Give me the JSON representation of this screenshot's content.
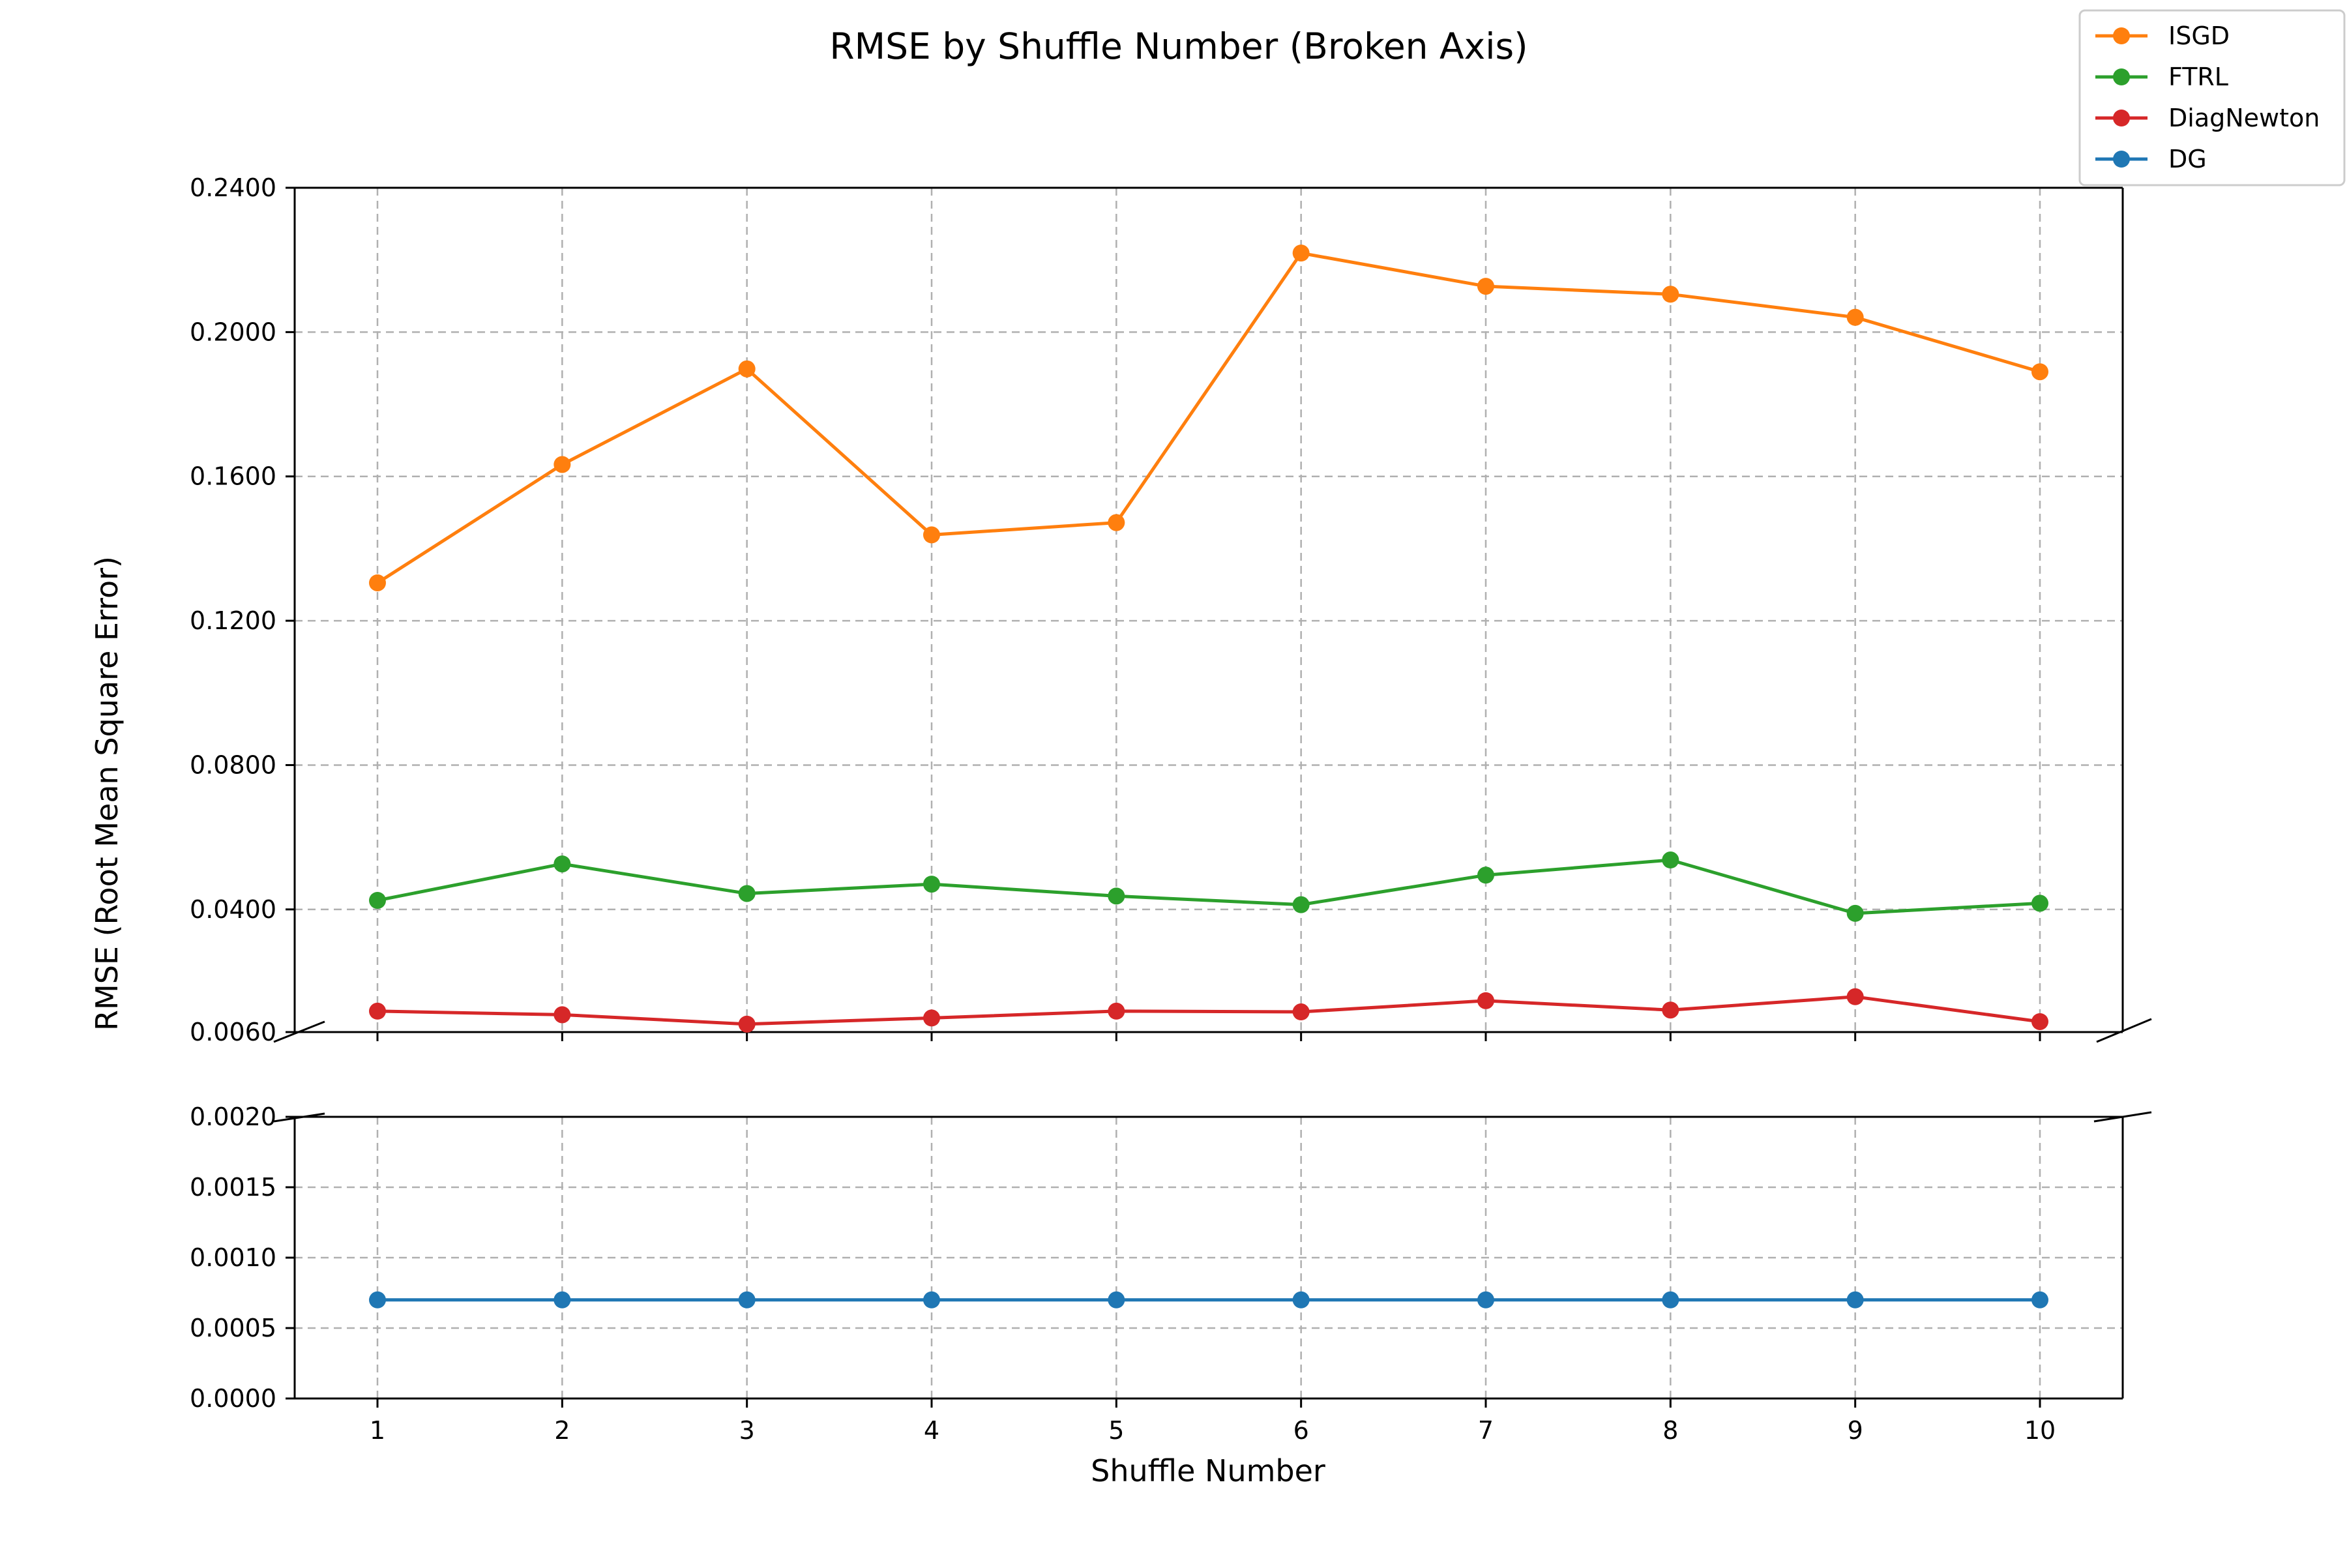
{
  "chart_data": {
    "type": "line",
    "title": "RMSE by Shuffle Number (Broken Axis)",
    "xlabel": "Shuffle Number",
    "ylabel": "RMSE (Root Mean Square Error)",
    "x": [
      1,
      2,
      3,
      4,
      5,
      6,
      7,
      8,
      9,
      10
    ],
    "x_tick_labels": [
      "1",
      "2",
      "3",
      "4",
      "5",
      "6",
      "7",
      "8",
      "9",
      "10"
    ],
    "broken_axis": true,
    "grid": true,
    "legend_position": "top-right",
    "upper_panel": {
      "ylim": [
        0.006,
        0.24
      ],
      "y_ticks": [
        0.006,
        0.04,
        0.08,
        0.12,
        0.16,
        0.2,
        0.24
      ],
      "y_tick_labels": [
        "0.0060",
        "0.0400",
        "0.0800",
        "0.1200",
        "0.1600",
        "0.2000",
        "0.2400"
      ]
    },
    "lower_panel": {
      "ylim": [
        0,
        0.002
      ],
      "y_ticks": [
        0,
        0.0005,
        0.001,
        0.0015,
        0.002
      ],
      "y_tick_labels": [
        "0.0000",
        "0.0005",
        "0.0010",
        "0.0015",
        "0.0020"
      ]
    },
    "series": [
      {
        "name": "ISGD",
        "color": "#ff7f0e",
        "panel": "upper",
        "values": [
          0.1305,
          0.1633,
          0.1898,
          0.1438,
          0.1472,
          0.2219,
          0.2127,
          0.2105,
          0.2041,
          0.189
        ]
      },
      {
        "name": "FTRL",
        "color": "#2ca02c",
        "panel": "upper",
        "values": [
          0.0425,
          0.0526,
          0.0444,
          0.047,
          0.0437,
          0.0413,
          0.0495,
          0.0537,
          0.0389,
          0.0417
        ]
      },
      {
        "name": "DiagNewton",
        "color": "#d62728",
        "panel": "upper",
        "values": [
          0.0118,
          0.0108,
          0.0082,
          0.0099,
          0.0118,
          0.0116,
          0.0147,
          0.0121,
          0.0158,
          0.0089
        ]
      },
      {
        "name": "DG",
        "color": "#1f77b4",
        "panel": "lower",
        "values": [
          0.0007,
          0.0007,
          0.0007,
          0.0007,
          0.0007,
          0.0007,
          0.0007,
          0.0007,
          0.0007,
          0.0007
        ]
      }
    ]
  }
}
